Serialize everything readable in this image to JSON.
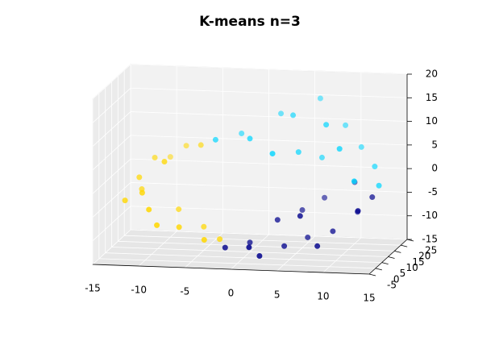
{
  "chart_data": {
    "type": "scatter3d",
    "title": "K-means n=3",
    "xlim": [
      -15,
      15
    ],
    "xticks": [
      -15,
      -10,
      -5,
      0,
      5,
      10,
      15
    ],
    "ylim": [
      -5,
      25
    ],
    "yticks": [
      -5,
      0,
      5,
      10,
      15,
      20,
      25
    ],
    "zlim": [
      -15,
      20
    ],
    "zticks": [
      -15,
      -10,
      -5,
      0,
      5,
      10,
      15,
      20
    ],
    "grid": true,
    "series": [
      {
        "color": "#ffd700",
        "x": [
          -11,
          -12,
          -11,
          -9,
          -8,
          -10,
          -12,
          -9,
          -7,
          -5,
          -4,
          -10,
          -6,
          -13,
          -8,
          -3
        ],
        "y": [
          5,
          10,
          15,
          8,
          18,
          3,
          12,
          2,
          5,
          10,
          3,
          20,
          15,
          6,
          12,
          8
        ],
        "z": [
          -2,
          0,
          3,
          4,
          5,
          -5,
          -3,
          -8,
          -9,
          -10,
          -11,
          2,
          6,
          -4,
          -7,
          -12
        ]
      },
      {
        "color": "#00008b",
        "x": [
          -2,
          0,
          2,
          4,
          6,
          8,
          9,
          11,
          12,
          5,
          3,
          7,
          10,
          1,
          13,
          6
        ],
        "y": [
          5,
          10,
          3,
          8,
          12,
          5,
          10,
          15,
          8,
          15,
          10,
          18,
          20,
          2,
          12,
          6
        ],
        "z": [
          -13,
          -13,
          -14,
          -13,
          -12,
          -12,
          -10,
          -7,
          -5,
          -7,
          -8,
          -5,
          -2,
          -12,
          -3,
          -6
        ]
      },
      {
        "color": "#00d5ff",
        "x": [
          -2,
          -4,
          0,
          2,
          4,
          6,
          8,
          10,
          11,
          13,
          12,
          14,
          9,
          3,
          5,
          7
        ],
        "y": [
          18,
          12,
          10,
          20,
          15,
          22,
          12,
          8,
          18,
          14,
          5,
          10,
          20,
          6,
          12,
          16
        ],
        "z": [
          8,
          8,
          9,
          12,
          13,
          15,
          12,
          8,
          6,
          3,
          2,
          0,
          10,
          7,
          6,
          4
        ]
      }
    ]
  }
}
